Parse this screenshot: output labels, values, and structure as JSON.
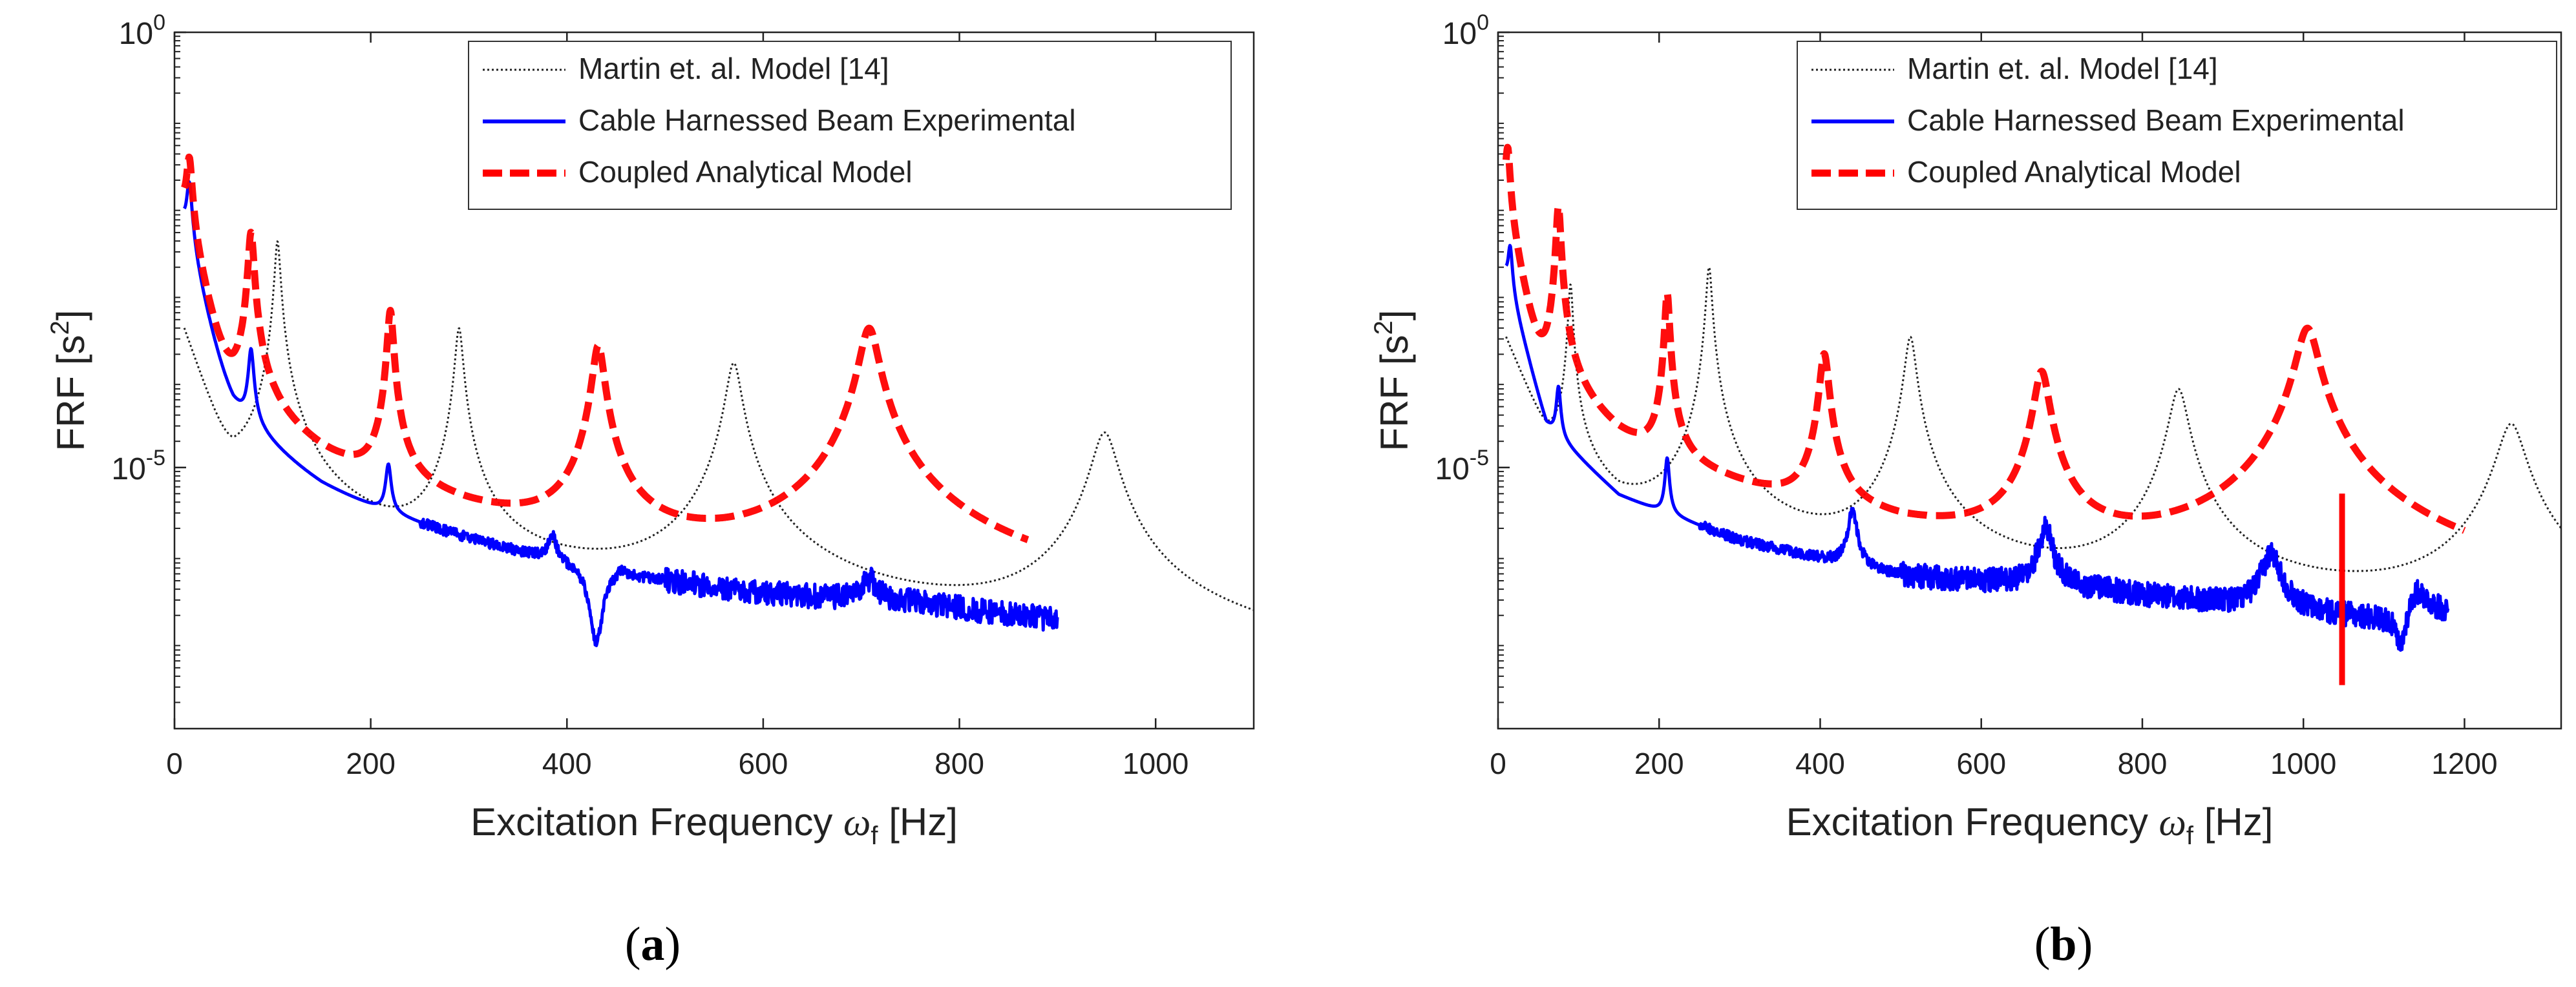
{
  "chart_data": [
    {
      "type": "line",
      "panel_label": "a",
      "xlabel": "Excitation Frequency ω_f [Hz]",
      "ylabel": "FRF [s^2]",
      "xlim": [
        0,
        1100
      ],
      "ylim_log10": [
        -8,
        0
      ],
      "yscale": "log",
      "xticks": [
        0,
        200,
        400,
        600,
        800,
        1000
      ],
      "yticks_labels": [
        "10^0",
        "10^-5"
      ],
      "legend_position": "top-right",
      "legend": [
        "Martin et. al. Model [14]",
        "Cable Harnessed Beam Experimental",
        "Coupled Analytical Model"
      ],
      "series": [
        {
          "name": "Martin et. al. Model [14]",
          "color": "#222222",
          "style": "dotted",
          "x_range": [
            10,
            1100
          ],
          "peaks": [
            {
              "f": 105,
              "log10": -2.4
            },
            {
              "f": 290,
              "log10": -3.4
            },
            {
              "f": 570,
              "log10": -3.8
            },
            {
              "f": 948,
              "log10": -4.6
            }
          ],
          "baseline_log10": [
            [
              10,
              -3.4
            ],
            [
              60,
              -5.0
            ],
            [
              150,
              -6.0
            ],
            [
              300,
              -6.4
            ],
            [
              500,
              -6.6
            ],
            [
              700,
              -6.9
            ],
            [
              900,
              -7.2
            ],
            [
              1100,
              -7.5
            ]
          ]
        },
        {
          "name": "Cable Harnessed Beam Experimental",
          "color": "#0000ff",
          "style": "solid",
          "x_range": [
            10,
            900
          ],
          "peaks": [
            {
              "f": 15,
              "log10": -1.8
            },
            {
              "f": 78,
              "log10": -3.7
            },
            {
              "f": 218,
              "log10": -5.1
            },
            {
              "f": 385,
              "log10": -6.05
            },
            {
              "f": 455,
              "log10": -6.85
            },
            {
              "f": 708,
              "log10": -6.65
            }
          ],
          "dips": [
            {
              "f": 430,
              "log10": -7.1
            }
          ],
          "baseline_log10": [
            [
              10,
              -2.2
            ],
            [
              60,
              -4.8
            ],
            [
              150,
              -5.9
            ],
            [
              300,
              -6.5
            ],
            [
              500,
              -7.05
            ],
            [
              600,
              -7.15
            ],
            [
              750,
              -7.0
            ],
            [
              900,
              -7.3
            ]
          ]
        },
        {
          "name": "Coupled Analytical Model",
          "color": "#ff0000",
          "style": "dashed",
          "x_range": [
            10,
            870
          ],
          "peaks": [
            {
              "f": 15,
              "log10": -1.5
            },
            {
              "f": 78,
              "log10": -2.3
            },
            {
              "f": 220,
              "log10": -3.2
            },
            {
              "f": 432,
              "log10": -3.6
            },
            {
              "f": 708,
              "log10": -3.4
            }
          ],
          "baseline_log10": [
            [
              10,
              -2.0
            ],
            [
              60,
              -4.8
            ],
            [
              150,
              -5.9
            ],
            [
              300,
              -6.5
            ],
            [
              500,
              -6.95
            ],
            [
              600,
              -7.0
            ],
            [
              800,
              -7.6
            ],
            [
              870,
              -7.75
            ]
          ]
        }
      ]
    },
    {
      "type": "line",
      "panel_label": "b",
      "xlabel": "Excitation Frequency ω_f [Hz]",
      "ylabel": "FRF [s^2]",
      "xlim": [
        0,
        1320
      ],
      "ylim_log10": [
        -8,
        0
      ],
      "yscale": "log",
      "xticks": [
        0,
        200,
        400,
        600,
        800,
        1000,
        1200
      ],
      "yticks_labels": [
        "10^0",
        "10^-5"
      ],
      "legend_position": "top-right",
      "legend": [
        "Martin et. al. Model [14]",
        "Cable Harnessed Beam Experimental",
        "Coupled Analytical Model"
      ],
      "series": [
        {
          "name": "Martin et. al. Model [14]",
          "color": "#222222",
          "style": "dotted",
          "x_range": [
            10,
            1320
          ],
          "peaks": [
            {
              "f": 90,
              "log10": -2.9
            },
            {
              "f": 262,
              "log10": -2.7
            },
            {
              "f": 512,
              "log10": -3.5
            },
            {
              "f": 845,
              "log10": -4.1
            },
            {
              "f": 1258,
              "log10": -4.5
            }
          ],
          "baseline_log10": [
            [
              10,
              -3.5
            ],
            [
              60,
              -4.6
            ],
            [
              150,
              -5.5
            ],
            [
              300,
              -5.9
            ],
            [
              500,
              -6.3
            ],
            [
              700,
              -6.5
            ],
            [
              900,
              -6.6
            ],
            [
              1100,
              -6.7
            ],
            [
              1320,
              -6.8
            ]
          ]
        },
        {
          "name": "Cable Harnessed Beam Experimental",
          "color": "#0000ff",
          "style": "solid",
          "x_range": [
            10,
            1180
          ],
          "peaks": [
            {
              "f": 15,
              "log10": -2.6
            },
            {
              "f": 75,
              "log10": -4.2
            },
            {
              "f": 210,
              "log10": -5.0
            },
            {
              "f": 440,
              "log10": -5.6
            },
            {
              "f": 680,
              "log10": -5.8
            },
            {
              "f": 960,
              "log10": -6.1
            },
            {
              "f": 1140,
              "log10": -6.6
            }
          ],
          "dips": [
            {
              "f": 1120,
              "log10": -7.1
            }
          ],
          "baseline_log10": [
            [
              10,
              -2.8
            ],
            [
              60,
              -4.6
            ],
            [
              150,
              -5.4
            ],
            [
              300,
              -5.9
            ],
            [
              500,
              -6.3
            ],
            [
              700,
              -6.4
            ],
            [
              900,
              -6.6
            ],
            [
              1100,
              -6.8
            ],
            [
              1180,
              -6.7
            ]
          ]
        },
        {
          "name": "Coupled Analytical Model",
          "color": "#ff0000",
          "style": "dashed",
          "x_range": [
            10,
            1200
          ],
          "peaks": [
            {
              "f": 12,
              "log10": -1.4
            },
            {
              "f": 75,
              "log10": -2.0
            },
            {
              "f": 210,
              "log10": -3.0
            },
            {
              "f": 405,
              "log10": -3.7
            },
            {
              "f": 675,
              "log10": -3.9
            },
            {
              "f": 1005,
              "log10": -3.4
            }
          ],
          "spike": {
            "f": 1048,
            "from_log10": -7.5,
            "to_log10": -5.3
          },
          "baseline_log10": [
            [
              10,
              -2.0
            ],
            [
              60,
              -4.5
            ],
            [
              150,
              -5.3
            ],
            [
              300,
              -5.7
            ],
            [
              500,
              -6.2
            ],
            [
              700,
              -6.35
            ],
            [
              900,
              -6.7
            ],
            [
              1100,
              -6.9
            ],
            [
              1200,
              -7.0
            ]
          ]
        }
      ]
    }
  ]
}
